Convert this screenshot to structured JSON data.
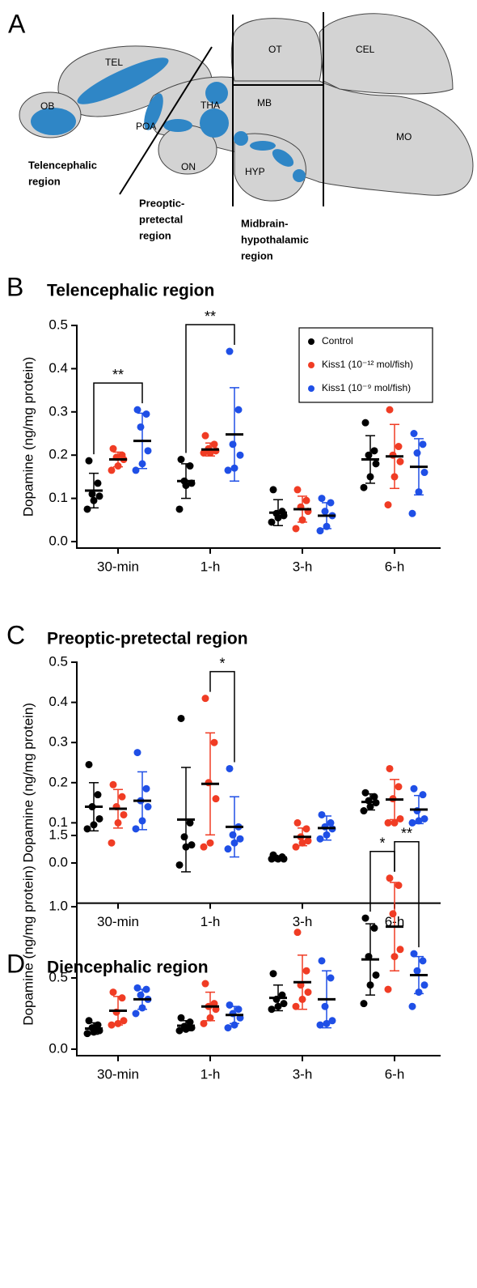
{
  "panel_a": {
    "panel": "A",
    "labels": [
      "OB",
      "TEL",
      "POA",
      "THA",
      "MB",
      "OT",
      "CEL",
      "MO",
      "ON",
      "HYP"
    ],
    "regions": [
      [
        "Telencephalic",
        "region"
      ],
      [
        "Preoptic-",
        "pretectal",
        "region"
      ],
      [
        "Midbrain-",
        "hypothalamic",
        "region"
      ]
    ]
  },
  "chart_data": [
    {
      "type": "dot",
      "panel": "B",
      "title": "Telencephalic region",
      "y_label": "Dopamine (ng/mg protein)",
      "categories": [
        "30-min",
        "1-h",
        "3-h",
        "6-h"
      ],
      "ylim": [
        0,
        0.5
      ],
      "yticks": [
        {
          "value": 0,
          "label": "0.0"
        },
        0.1,
        0.2,
        0.3,
        0.4,
        0.5
      ],
      "legend": "upper right",
      "series": [
        {
          "name": "Control",
          "color": "#000000",
          "values": [
            [
              0.187,
              0.135,
              0.11,
              0.105,
              0.095,
              0.075
            ],
            [
              0.19,
              0.175,
              0.14,
              0.135,
              0.13,
              0.075
            ],
            [
              0.12,
              0.07,
              0.065,
              0.06,
              0.055,
              0.045
            ],
            [
              0.275,
              0.21,
              0.2,
              0.18,
              0.15,
              0.125
            ]
          ],
          "mean": [
            0.118,
            0.14,
            0.067,
            0.19
          ],
          "sd": [
            0.04,
            0.04,
            0.03,
            0.055
          ]
        },
        {
          "name": "Kiss1 (10⁻¹² mol/fish)",
          "color": "#f03c24",
          "values": [
            [
              0.215,
              0.2,
              0.195,
              0.19,
              0.175,
              0.165
            ],
            [
              0.245,
              0.225,
              0.215,
              0.21,
              0.205,
              0.205
            ],
            [
              0.12,
              0.095,
              0.08,
              0.07,
              0.05,
              0.03
            ],
            [
              0.305,
              0.22,
              0.2,
              0.185,
              0.15,
              0.085
            ]
          ],
          "mean": [
            0.19,
            0.213,
            0.075,
            0.197
          ],
          "sd": [
            0.017,
            0.015,
            0.03,
            0.074
          ]
        },
        {
          "name": "Kiss1 (10⁻⁹ mol/fish)",
          "color": "#1f4fe6",
          "values": [
            [
              0.305,
              0.295,
              0.265,
              0.21,
              0.18,
              0.165
            ],
            [
              0.44,
              0.305,
              0.225,
              0.2,
              0.17,
              0.165
            ],
            [
              0.1,
              0.09,
              0.07,
              0.06,
              0.035,
              0.025
            ],
            [
              0.25,
              0.225,
              0.205,
              0.16,
              0.115,
              0.065
            ]
          ],
          "mean": [
            0.233,
            0.248,
            0.06,
            0.173
          ],
          "sd": [
            0.064,
            0.108,
            0.03,
            0.065
          ]
        }
      ],
      "significance": [
        {
          "label": "**",
          "category": 0,
          "from": 0,
          "to": 2
        },
        {
          "label": "**",
          "category": 1,
          "from": 0,
          "to": 2
        }
      ]
    },
    {
      "type": "dot",
      "panel": "C",
      "title": "Preoptic-pretectal region",
      "y_label": "Dopamine (ng/mg protein)",
      "categories": [
        "30-min",
        "1-h",
        "3-h",
        "6-h"
      ],
      "ylim": [
        -0.1,
        0.5
      ],
      "yticks": [
        {
          "value": 0,
          "label": "0.0"
        },
        0.1,
        0.2,
        0.3,
        0.4,
        0.5
      ],
      "series": [
        {
          "color": "#000000",
          "values": [
            [
              0.245,
              0.17,
              0.14,
              0.11,
              0.095,
              0.085
            ],
            [
              0.36,
              0.1,
              0.065,
              0.045,
              0.04,
              -0.005
            ],
            [
              0.02,
              0.015,
              0.012,
              0.01,
              0.01,
              0.01
            ],
            [
              0.175,
              0.165,
              0.155,
              0.15,
              0.14,
              0.13
            ]
          ],
          "mean": [
            0.14,
            0.108,
            0.013,
            0.152
          ],
          "sd": [
            0.06,
            0.13,
            0.004,
            0.02
          ]
        },
        {
          "color": "#f03c24",
          "values": [
            [
              0.195,
              0.165,
              0.14,
              0.12,
              0.1,
              0.05
            ],
            [
              0.41,
              0.3,
              0.2,
              0.16,
              0.05,
              0.04
            ],
            [
              0.1,
              0.085,
              0.065,
              0.055,
              0.05,
              0.04
            ],
            [
              0.235,
              0.19,
              0.16,
              0.11,
              0.1,
              0.1
            ]
          ],
          "mean": [
            0.135,
            0.197,
            0.065,
            0.158
          ],
          "sd": [
            0.048,
            0.127,
            0.022,
            0.05
          ]
        },
        {
          "color": "#1f4fe6",
          "values": [
            [
              0.275,
              0.185,
              0.155,
              0.14,
              0.105,
              0.085
            ],
            [
              0.235,
              0.09,
              0.07,
              0.06,
              0.05,
              0.035
            ],
            [
              0.12,
              0.1,
              0.09,
              0.085,
              0.07,
              0.06
            ],
            [
              0.185,
              0.17,
              0.13,
              0.11,
              0.105,
              0.1
            ]
          ],
          "mean": [
            0.155,
            0.09,
            0.087,
            0.133
          ],
          "sd": [
            0.072,
            0.075,
            0.03,
            0.035
          ]
        }
      ],
      "significance": [
        {
          "label": "*",
          "category": 1,
          "from": 1,
          "to": 2
        }
      ]
    },
    {
      "type": "dot",
      "panel": "D",
      "title": "Diencephalic region",
      "y_label": "Dopamine (ng/mg protein)",
      "categories": [
        "30-min",
        "1-h",
        "3-h",
        "6-h"
      ],
      "ylim": [
        0,
        1.5
      ],
      "yticks": [
        {
          "value": 0,
          "label": "0.0"
        },
        0.5,
        {
          "value": 1,
          "label": "1.0"
        },
        1.5
      ],
      "series": [
        {
          "color": "#000000",
          "values": [
            [
              0.2,
              0.17,
              0.15,
              0.13,
              0.12,
              0.11
            ],
            [
              0.22,
              0.19,
              0.16,
              0.15,
              0.14,
              0.13
            ],
            [
              0.53,
              0.38,
              0.35,
              0.32,
              0.3,
              0.28
            ],
            [
              0.92,
              0.85,
              0.65,
              0.52,
              0.45,
              0.32
            ]
          ],
          "mean": [
            0.145,
            0.165,
            0.36,
            0.63
          ],
          "sd": [
            0.04,
            0.035,
            0.09,
            0.25
          ]
        },
        {
          "color": "#f03c24",
          "values": [
            [
              0.4,
              0.36,
              0.26,
              0.2,
              0.18,
              0.17
            ],
            [
              0.46,
              0.32,
              0.3,
              0.28,
              0.22,
              0.18
            ],
            [
              0.82,
              0.55,
              0.45,
              0.4,
              0.35,
              0.3
            ],
            [
              1.2,
              1.15,
              0.95,
              0.7,
              0.65,
              0.42
            ]
          ],
          "mean": [
            0.27,
            0.3,
            0.47,
            0.86
          ],
          "sd": [
            0.1,
            0.1,
            0.19,
            0.31
          ]
        },
        {
          "color": "#1f4fe6",
          "values": [
            [
              0.43,
              0.42,
              0.38,
              0.35,
              0.29,
              0.25
            ],
            [
              0.31,
              0.28,
              0.25,
              0.22,
              0.17,
              0.15
            ],
            [
              0.62,
              0.5,
              0.3,
              0.2,
              0.18,
              0.17
            ],
            [
              0.67,
              0.62,
              0.55,
              0.45,
              0.4,
              0.3
            ]
          ],
          "mean": [
            0.35,
            0.24,
            0.35,
            0.52
          ],
          "sd": [
            0.07,
            0.06,
            0.2,
            0.13
          ]
        }
      ],
      "significance": [
        {
          "label": "*",
          "category": 3,
          "from": 0,
          "to": 1
        },
        {
          "label": "**",
          "category": 3,
          "from": 1,
          "to": 2
        }
      ]
    }
  ]
}
